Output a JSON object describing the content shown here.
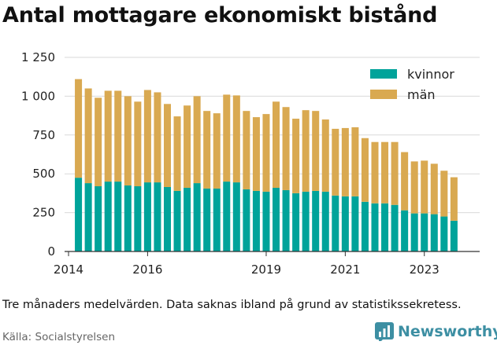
{
  "title": "Antal mottagare ekonomiskt bistånd",
  "note": "Tre månaders medelvärden. Data saknas ibland på grund av statistikssekretess.",
  "source": "Källa: Socialstyrelsen",
  "brand": {
    "name": "Newsworthy",
    "icon": "newsworthy-chart-icon",
    "color": "#3d8fa3"
  },
  "chart_data": {
    "type": "bar",
    "stacked": true,
    "x": [
      2014.25,
      2014.5,
      2014.75,
      2015.0,
      2015.25,
      2015.5,
      2015.75,
      2016.0,
      2016.25,
      2016.5,
      2016.75,
      2017.0,
      2017.25,
      2017.5,
      2017.75,
      2018.0,
      2018.25,
      2018.5,
      2018.75,
      2019.0,
      2019.25,
      2019.5,
      2019.75,
      2020.0,
      2020.25,
      2020.5,
      2020.75,
      2021.0,
      2021.25,
      2021.5,
      2021.75,
      2022.0,
      2022.25,
      2022.5,
      2022.75,
      2023.0,
      2023.25,
      2023.5,
      2023.75,
      2024.0
    ],
    "xticks": [
      2014,
      2016,
      2019,
      2021,
      2023
    ],
    "xlim": [
      2013.9,
      2024.4
    ],
    "ylim": [
      0,
      1250
    ],
    "yticks": [
      0,
      250,
      500,
      750,
      1000,
      1250
    ],
    "ytick_labels": [
      "0",
      "250",
      "500",
      "750",
      "1 000",
      "1 250"
    ],
    "grid": true,
    "legend_position": "top-right",
    "series": [
      {
        "name": "kvinnor",
        "color": "#00a39a",
        "values": [
          475,
          440,
          420,
          450,
          450,
          425,
          420,
          445,
          445,
          415,
          390,
          410,
          440,
          405,
          405,
          450,
          445,
          400,
          390,
          385,
          410,
          395,
          375,
          385,
          390,
          385,
          360,
          355,
          355,
          320,
          310,
          310,
          300,
          265,
          245,
          245,
          240,
          225,
          198,
          null
        ]
      },
      {
        "name": "män",
        "color": "#d9a951",
        "values": [
          635,
          610,
          570,
          585,
          585,
          575,
          545,
          595,
          580,
          535,
          480,
          530,
          560,
          500,
          485,
          560,
          560,
          505,
          475,
          500,
          555,
          535,
          480,
          525,
          515,
          465,
          430,
          440,
          445,
          410,
          395,
          395,
          405,
          375,
          335,
          340,
          325,
          295,
          280,
          null
        ]
      }
    ]
  }
}
